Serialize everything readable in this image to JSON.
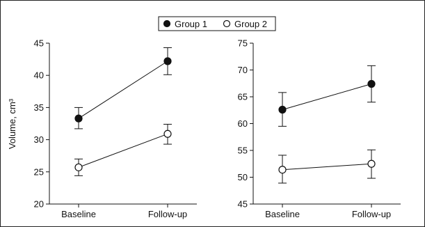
{
  "chart_data": [
    {
      "type": "line",
      "categories": [
        "Baseline",
        "Follow-up"
      ],
      "ylabel": "Volume, cm³",
      "ylim": [
        20,
        45
      ],
      "yticks": [
        20,
        25,
        30,
        35,
        40,
        45
      ],
      "legend_placement": "top-center",
      "series": [
        {
          "name": "Group 1",
          "marker": "filled-circle",
          "values": [
            33.3,
            42.2
          ],
          "error_low": [
            31.7,
            40.1
          ],
          "error_high": [
            35.0,
            44.3
          ]
        },
        {
          "name": "Group 2",
          "marker": "open-circle",
          "values": [
            25.7,
            30.9
          ],
          "error_low": [
            24.4,
            29.3
          ],
          "error_high": [
            27.0,
            32.4
          ]
        }
      ]
    },
    {
      "type": "line",
      "categories": [
        "Baseline",
        "Follow-up"
      ],
      "ylabel": "",
      "ylim": [
        45,
        75
      ],
      "yticks": [
        45,
        50,
        55,
        60,
        65,
        70,
        75
      ],
      "series": [
        {
          "name": "Group 1",
          "marker": "filled-circle",
          "values": [
            62.6,
            67.4
          ],
          "error_low": [
            59.5,
            64.0
          ],
          "error_high": [
            65.8,
            70.8
          ]
        },
        {
          "name": "Group 2",
          "marker": "open-circle",
          "values": [
            51.4,
            52.5
          ],
          "error_low": [
            48.9,
            49.8
          ],
          "error_high": [
            54.1,
            55.1
          ]
        }
      ]
    }
  ],
  "colors": {
    "ink": "#111111",
    "open_marker_fill": "#ffffff"
  }
}
